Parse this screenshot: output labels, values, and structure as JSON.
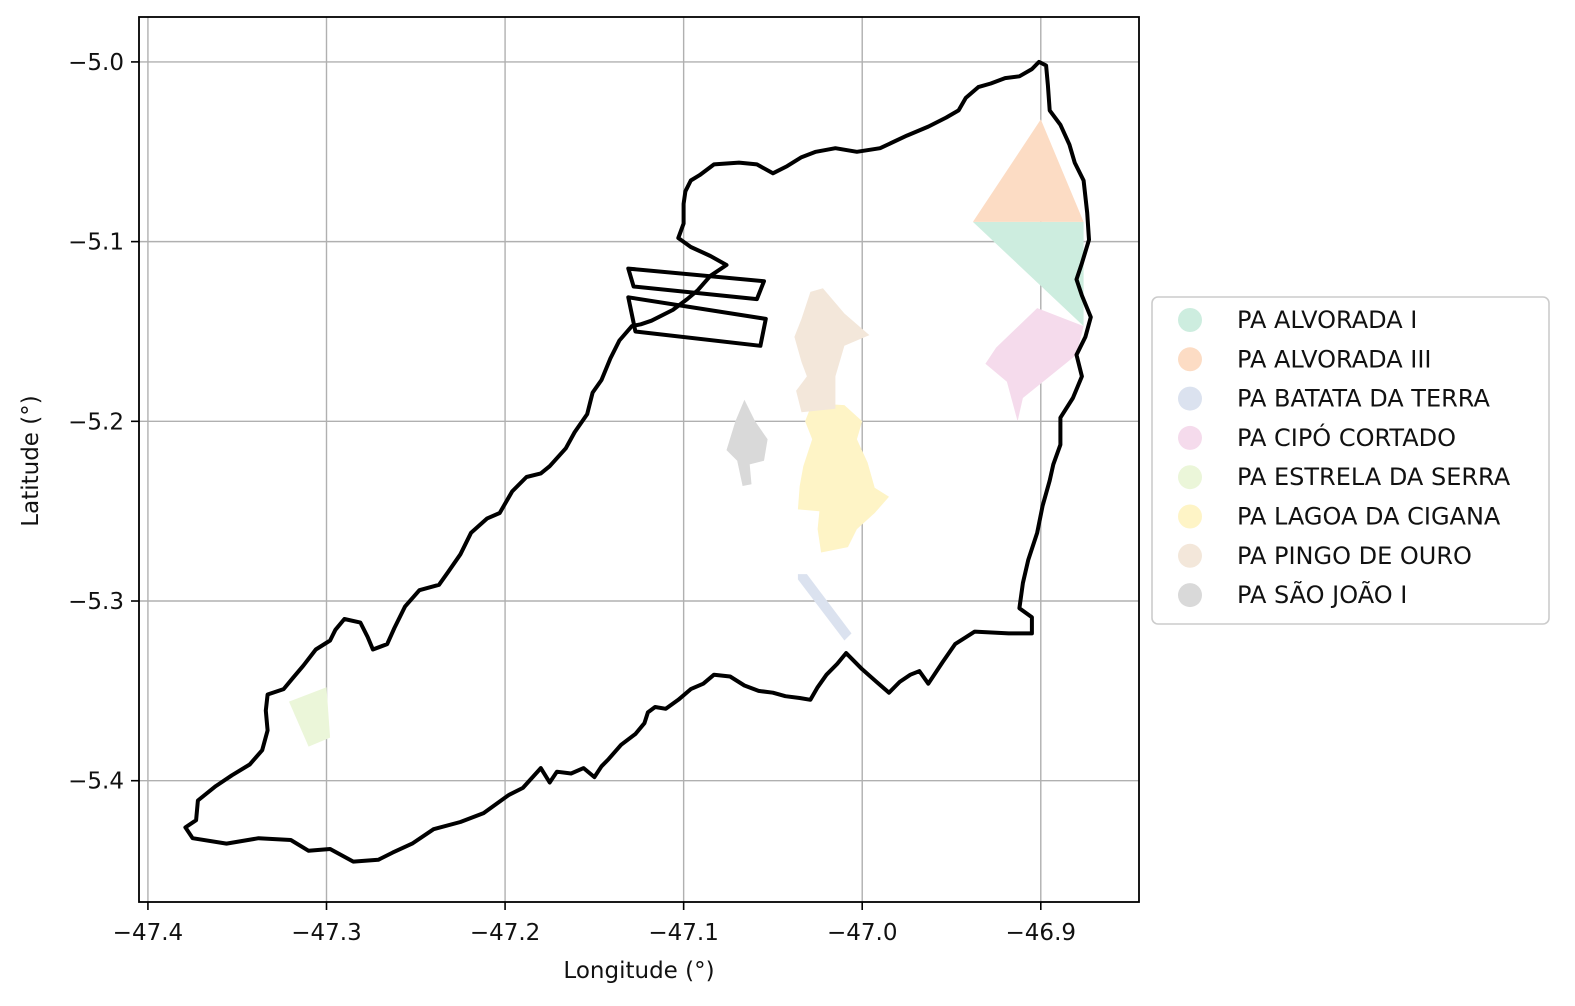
{
  "map": {
    "xlabel": "Longitude (°)",
    "ylabel": "Latitude (°)",
    "xlim": [
      -47.405,
      -46.845
    ],
    "ylim": [
      -5.4675,
      -4.975
    ],
    "grid": true,
    "legend_placement": "center right, outside plot",
    "x_ticks": [
      {
        "value": -47.4,
        "label": "−47.4"
      },
      {
        "value": -47.3,
        "label": "−47.3"
      },
      {
        "value": -47.2,
        "label": "−47.2"
      },
      {
        "value": -47.1,
        "label": "−47.1"
      },
      {
        "value": -47.0,
        "label": "−47.0"
      },
      {
        "value": -46.9,
        "label": "−46.9"
      }
    ],
    "y_ticks": [
      {
        "value": -5.0,
        "label": "−5.0"
      },
      {
        "value": -5.1,
        "label": "−5.1"
      },
      {
        "value": -5.2,
        "label": "−5.2"
      },
      {
        "value": -5.3,
        "label": "−5.3"
      },
      {
        "value": -5.4,
        "label": "−5.4"
      }
    ],
    "boundary_color": "#000000",
    "boundary": [
      [
        -47.379,
        -5.426
      ],
      [
        -47.373,
        -5.422
      ],
      [
        -47.372,
        -5.411
      ],
      [
        -47.362,
        -5.403
      ],
      [
        -47.353,
        -5.397
      ],
      [
        -47.343,
        -5.391
      ],
      [
        -47.336,
        -5.383
      ],
      [
        -47.333,
        -5.372
      ],
      [
        -47.334,
        -5.361
      ],
      [
        -47.333,
        -5.352
      ],
      [
        -47.324,
        -5.349
      ],
      [
        -47.319,
        -5.343
      ],
      [
        -47.313,
        -5.336
      ],
      [
        -47.306,
        -5.327
      ],
      [
        -47.298,
        -5.322
      ],
      [
        -47.295,
        -5.316
      ],
      [
        -47.29,
        -5.31
      ],
      [
        -47.281,
        -5.312
      ],
      [
        -47.277,
        -5.32
      ],
      [
        -47.274,
        -5.327
      ],
      [
        -47.266,
        -5.324
      ],
      [
        -47.262,
        -5.315
      ],
      [
        -47.256,
        -5.303
      ],
      [
        -47.248,
        -5.294
      ],
      [
        -47.237,
        -5.291
      ],
      [
        -47.232,
        -5.284
      ],
      [
        -47.225,
        -5.274
      ],
      [
        -47.219,
        -5.262
      ],
      [
        -47.21,
        -5.254
      ],
      [
        -47.203,
        -5.251
      ],
      [
        -47.196,
        -5.239
      ],
      [
        -47.188,
        -5.231
      ],
      [
        -47.18,
        -5.229
      ],
      [
        -47.175,
        -5.225
      ],
      [
        -47.166,
        -5.215
      ],
      [
        -47.161,
        -5.206
      ],
      [
        -47.154,
        -5.196
      ],
      [
        -47.151,
        -5.184
      ],
      [
        -47.146,
        -5.177
      ],
      [
        -47.141,
        -5.165
      ],
      [
        -47.136,
        -5.155
      ],
      [
        -47.129,
        -5.147
      ],
      [
        -47.124,
        -5.146
      ],
      [
        -47.118,
        -5.144
      ],
      [
        -47.106,
        -5.138
      ],
      [
        -47.098,
        -5.132
      ],
      [
        -47.092,
        -5.127
      ],
      [
        -47.085,
        -5.119
      ],
      [
        -47.076,
        -5.113
      ],
      [
        -47.085,
        -5.108
      ],
      [
        -47.096,
        -5.103
      ],
      [
        -47.103,
        -5.098
      ],
      [
        -47.1,
        -5.09
      ],
      [
        -47.1,
        -5.079
      ],
      [
        -47.099,
        -5.072
      ],
      [
        -47.096,
        -5.066
      ],
      [
        -47.091,
        -5.063
      ],
      [
        -47.083,
        -5.057
      ],
      [
        -47.069,
        -5.056
      ],
      [
        -47.059,
        -5.057
      ],
      [
        -47.05,
        -5.062
      ],
      [
        -47.042,
        -5.058
      ],
      [
        -47.034,
        -5.053
      ],
      [
        -47.026,
        -5.05
      ],
      [
        -47.015,
        -5.048
      ],
      [
        -47.003,
        -5.05
      ],
      [
        -46.99,
        -5.048
      ],
      [
        -46.975,
        -5.041
      ],
      [
        -46.963,
        -5.036
      ],
      [
        -46.953,
        -5.031
      ],
      [
        -46.946,
        -5.027
      ],
      [
        -46.942,
        -5.02
      ],
      [
        -46.935,
        -5.014
      ],
      [
        -46.928,
        -5.012
      ],
      [
        -46.92,
        -5.009
      ],
      [
        -46.912,
        -5.008
      ],
      [
        -46.905,
        -5.004
      ],
      [
        -46.901,
        -5.0
      ],
      [
        -46.897,
        -5.002
      ],
      [
        -46.896,
        -5.013
      ],
      [
        -46.895,
        -5.027
      ],
      [
        -46.889,
        -5.035
      ],
      [
        -46.884,
        -5.046
      ],
      [
        -46.881,
        -5.056
      ],
      [
        -46.876,
        -5.066
      ],
      [
        -46.874,
        -5.084
      ],
      [
        -46.873,
        -5.099
      ],
      [
        -46.877,
        -5.112
      ],
      [
        -46.88,
        -5.121
      ],
      [
        -46.877,
        -5.13
      ],
      [
        -46.872,
        -5.142
      ],
      [
        -46.875,
        -5.153
      ],
      [
        -46.88,
        -5.163
      ],
      [
        -46.877,
        -5.175
      ],
      [
        -46.882,
        -5.187
      ],
      [
        -46.889,
        -5.198
      ],
      [
        -46.889,
        -5.213
      ],
      [
        -46.893,
        -5.224
      ],
      [
        -46.895,
        -5.233
      ],
      [
        -46.899,
        -5.247
      ],
      [
        -46.902,
        -5.262
      ],
      [
        -46.907,
        -5.277
      ],
      [
        -46.91,
        -5.29
      ],
      [
        -46.912,
        -5.304
      ],
      [
        -46.905,
        -5.309
      ],
      [
        -46.905,
        -5.318
      ],
      [
        -46.918,
        -5.318
      ],
      [
        -46.937,
        -5.317
      ],
      [
        -46.948,
        -5.324
      ],
      [
        -46.955,
        -5.334
      ],
      [
        -46.963,
        -5.346
      ],
      [
        -46.968,
        -5.339
      ],
      [
        -46.973,
        -5.341
      ],
      [
        -46.979,
        -5.345
      ],
      [
        -46.985,
        -5.351
      ],
      [
        -46.992,
        -5.345
      ],
      [
        -47.0,
        -5.338
      ],
      [
        -47.005,
        -5.333
      ],
      [
        -47.009,
        -5.329
      ],
      [
        -47.014,
        -5.335
      ],
      [
        -47.02,
        -5.341
      ],
      [
        -47.025,
        -5.348
      ],
      [
        -47.029,
        -5.355
      ],
      [
        -47.035,
        -5.354
      ],
      [
        -47.043,
        -5.353
      ],
      [
        -47.05,
        -5.351
      ],
      [
        -47.058,
        -5.35
      ],
      [
        -47.066,
        -5.347
      ],
      [
        -47.074,
        -5.342
      ],
      [
        -47.083,
        -5.341
      ],
      [
        -47.089,
        -5.346
      ],
      [
        -47.096,
        -5.349
      ],
      [
        -47.103,
        -5.355
      ],
      [
        -47.11,
        -5.36
      ],
      [
        -47.116,
        -5.359
      ],
      [
        -47.12,
        -5.362
      ],
      [
        -47.122,
        -5.368
      ],
      [
        -47.127,
        -5.374
      ],
      [
        -47.135,
        -5.38
      ],
      [
        -47.142,
        -5.388
      ],
      [
        -47.146,
        -5.392
      ],
      [
        -47.15,
        -5.398
      ],
      [
        -47.156,
        -5.393
      ],
      [
        -47.163,
        -5.396
      ],
      [
        -47.171,
        -5.395
      ],
      [
        -47.175,
        -5.401
      ],
      [
        -47.18,
        -5.393
      ],
      [
        -47.19,
        -5.404
      ],
      [
        -47.198,
        -5.408
      ],
      [
        -47.212,
        -5.418
      ],
      [
        -47.225,
        -5.423
      ],
      [
        -47.24,
        -5.427
      ],
      [
        -47.252,
        -5.435
      ],
      [
        -47.263,
        -5.44
      ],
      [
        -47.271,
        -5.444
      ],
      [
        -47.285,
        -5.445
      ],
      [
        -47.298,
        -5.438
      ],
      [
        -47.31,
        -5.439
      ],
      [
        -47.32,
        -5.433
      ],
      [
        -47.338,
        -5.432
      ],
      [
        -47.356,
        -5.435
      ],
      [
        -47.375,
        -5.432
      ],
      [
        -47.379,
        -5.426
      ]
    ],
    "excluded_strips": [
      [
        [
          -47.131,
          -5.115
        ],
        [
          -47.055,
          -5.122
        ],
        [
          -47.059,
          -5.132
        ],
        [
          -47.128,
          -5.125
        ],
        [
          -47.131,
          -5.115
        ]
      ],
      [
        [
          -47.131,
          -5.131
        ],
        [
          -47.054,
          -5.143
        ],
        [
          -47.057,
          -5.158
        ],
        [
          -47.127,
          -5.15
        ],
        [
          -47.131,
          -5.131
        ]
      ]
    ],
    "projects": [
      {
        "name": "PA ALVORADA I",
        "color": "#cdeddf",
        "polygon": [
          [
            -46.938,
            -5.089
          ],
          [
            -46.876,
            -5.089
          ],
          [
            -46.876,
            -5.147
          ],
          [
            -46.938,
            -5.089
          ]
        ]
      },
      {
        "name": "PA ALVORADA III",
        "color": "#fcdcc4",
        "polygon": [
          [
            -46.938,
            -5.089
          ],
          [
            -46.9,
            -5.032
          ],
          [
            -46.876,
            -5.089
          ],
          [
            -46.938,
            -5.089
          ]
        ]
      },
      {
        "name": "PA BATATA DA TERRA",
        "color": "#dbe2ef",
        "polygon": [
          [
            -47.036,
            -5.285
          ],
          [
            -47.031,
            -5.285
          ],
          [
            -47.006,
            -5.318
          ],
          [
            -47.01,
            -5.322
          ],
          [
            -47.036,
            -5.288
          ]
        ]
      },
      {
        "name": "PA CIPÓ CORTADO",
        "color": "#f5dbec",
        "polygon": [
          [
            -46.902,
            -5.137
          ],
          [
            -46.876,
            -5.147
          ],
          [
            -46.88,
            -5.163
          ],
          [
            -46.91,
            -5.187
          ],
          [
            -46.913,
            -5.2
          ],
          [
            -46.919,
            -5.178
          ],
          [
            -46.931,
            -5.168
          ],
          [
            -46.925,
            -5.159
          ],
          [
            -46.902,
            -5.137
          ]
        ]
      },
      {
        "name": "PA ESTRELA DA SERRA",
        "color": "#ebf6d9",
        "polygon": [
          [
            -47.321,
            -5.356
          ],
          [
            -47.3,
            -5.348
          ],
          [
            -47.298,
            -5.376
          ],
          [
            -47.31,
            -5.381
          ],
          [
            -47.321,
            -5.356
          ]
        ]
      },
      {
        "name": "PA LAGOA DA CIGANA",
        "color": "#fef4c6",
        "polygon": [
          [
            -47.028,
            -5.19
          ],
          [
            -47.01,
            -5.191
          ],
          [
            -47.0,
            -5.2
          ],
          [
            -47.003,
            -5.21
          ],
          [
            -46.997,
            -5.223
          ],
          [
            -46.993,
            -5.237
          ],
          [
            -46.985,
            -5.242
          ],
          [
            -46.993,
            -5.251
          ],
          [
            -47.003,
            -5.26
          ],
          [
            -47.008,
            -5.27
          ],
          [
            -47.023,
            -5.273
          ],
          [
            -47.025,
            -5.26
          ],
          [
            -47.024,
            -5.25
          ],
          [
            -47.036,
            -5.249
          ],
          [
            -47.035,
            -5.236
          ],
          [
            -47.033,
            -5.225
          ],
          [
            -47.028,
            -5.21
          ],
          [
            -47.032,
            -5.2
          ],
          [
            -47.028,
            -5.19
          ]
        ]
      },
      {
        "name": "PA PINGO DE OURO",
        "color": "#f3e7da",
        "polygon": [
          [
            -47.029,
            -5.128
          ],
          [
            -47.022,
            -5.126
          ],
          [
            -47.01,
            -5.14
          ],
          [
            -46.996,
            -5.152
          ],
          [
            -47.01,
            -5.158
          ],
          [
            -47.015,
            -5.175
          ],
          [
            -47.015,
            -5.193
          ],
          [
            -47.034,
            -5.195
          ],
          [
            -47.037,
            -5.183
          ],
          [
            -47.031,
            -5.175
          ],
          [
            -47.034,
            -5.167
          ],
          [
            -47.038,
            -5.153
          ],
          [
            -47.034,
            -5.143
          ],
          [
            -47.029,
            -5.128
          ]
        ]
      },
      {
        "name": "PA SÃO JOÃO I",
        "color": "#d9d9d9",
        "polygon": [
          [
            -47.066,
            -5.188
          ],
          [
            -47.06,
            -5.2
          ],
          [
            -47.053,
            -5.21
          ],
          [
            -47.055,
            -5.222
          ],
          [
            -47.063,
            -5.224
          ],
          [
            -47.062,
            -5.235
          ],
          [
            -47.067,
            -5.236
          ],
          [
            -47.07,
            -5.222
          ],
          [
            -47.076,
            -5.216
          ],
          [
            -47.071,
            -5.2
          ],
          [
            -47.066,
            -5.188
          ]
        ]
      }
    ]
  }
}
